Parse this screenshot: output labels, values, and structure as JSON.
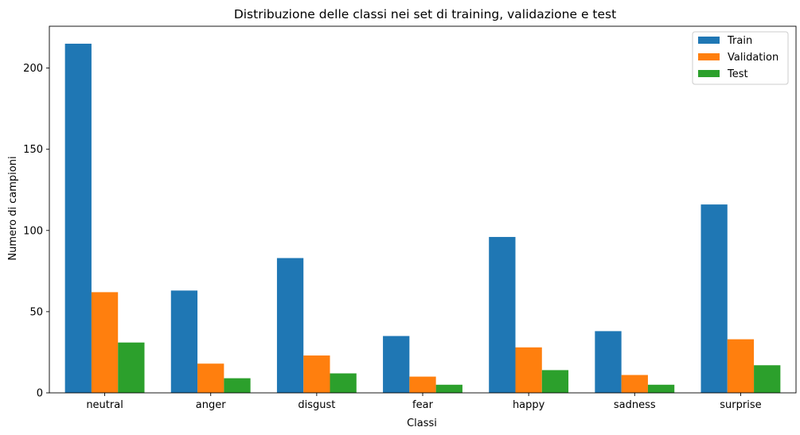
{
  "chart_data": {
    "type": "bar",
    "title": "Distribuzione delle classi nei set di training, validazione e test",
    "xlabel": "Classi",
    "ylabel": "Numero di campioni",
    "categories": [
      "neutral",
      "anger",
      "disgust",
      "fear",
      "happy",
      "sadness",
      "surprise"
    ],
    "series": [
      {
        "name": "Train",
        "color": "#1f77b4",
        "values": [
          215,
          63,
          83,
          35,
          96,
          38,
          116
        ]
      },
      {
        "name": "Validation",
        "color": "#ff7f0e",
        "values": [
          62,
          18,
          23,
          10,
          28,
          11,
          33
        ]
      },
      {
        "name": "Test",
        "color": "#2ca02c",
        "values": [
          31,
          9,
          12,
          5,
          14,
          5,
          17
        ]
      }
    ],
    "ylim": [
      0,
      225.75
    ],
    "yticks": [
      0,
      50,
      100,
      150,
      200
    ],
    "grid": false,
    "legend_position": "top-right"
  }
}
